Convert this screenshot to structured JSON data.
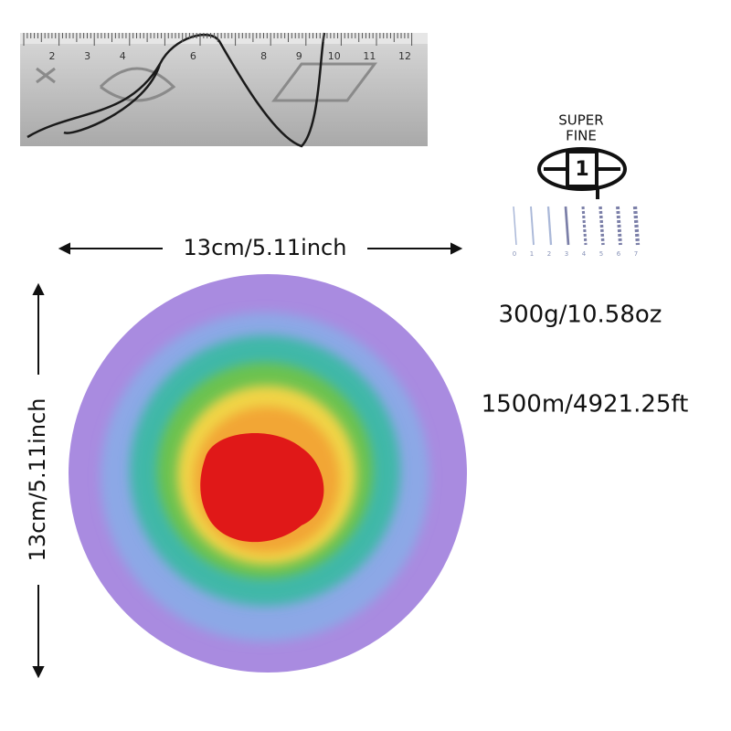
{
  "ruler": {
    "numbers": [
      2,
      3,
      4,
      6,
      8,
      9,
      10,
      11,
      12
    ]
  },
  "yarn_weight": {
    "label_top": "SUPER",
    "label_bottom": "FINE",
    "number": "1"
  },
  "needle_sizes": [
    "0",
    "1",
    "2",
    "3",
    "4",
    "5",
    "6",
    "7"
  ],
  "dimensions": {
    "width": "13cm/5.11inch",
    "height": "13cm/5.11inch"
  },
  "specs": {
    "weight": "300g/10.58oz",
    "length": "1500m/4921.25ft"
  }
}
